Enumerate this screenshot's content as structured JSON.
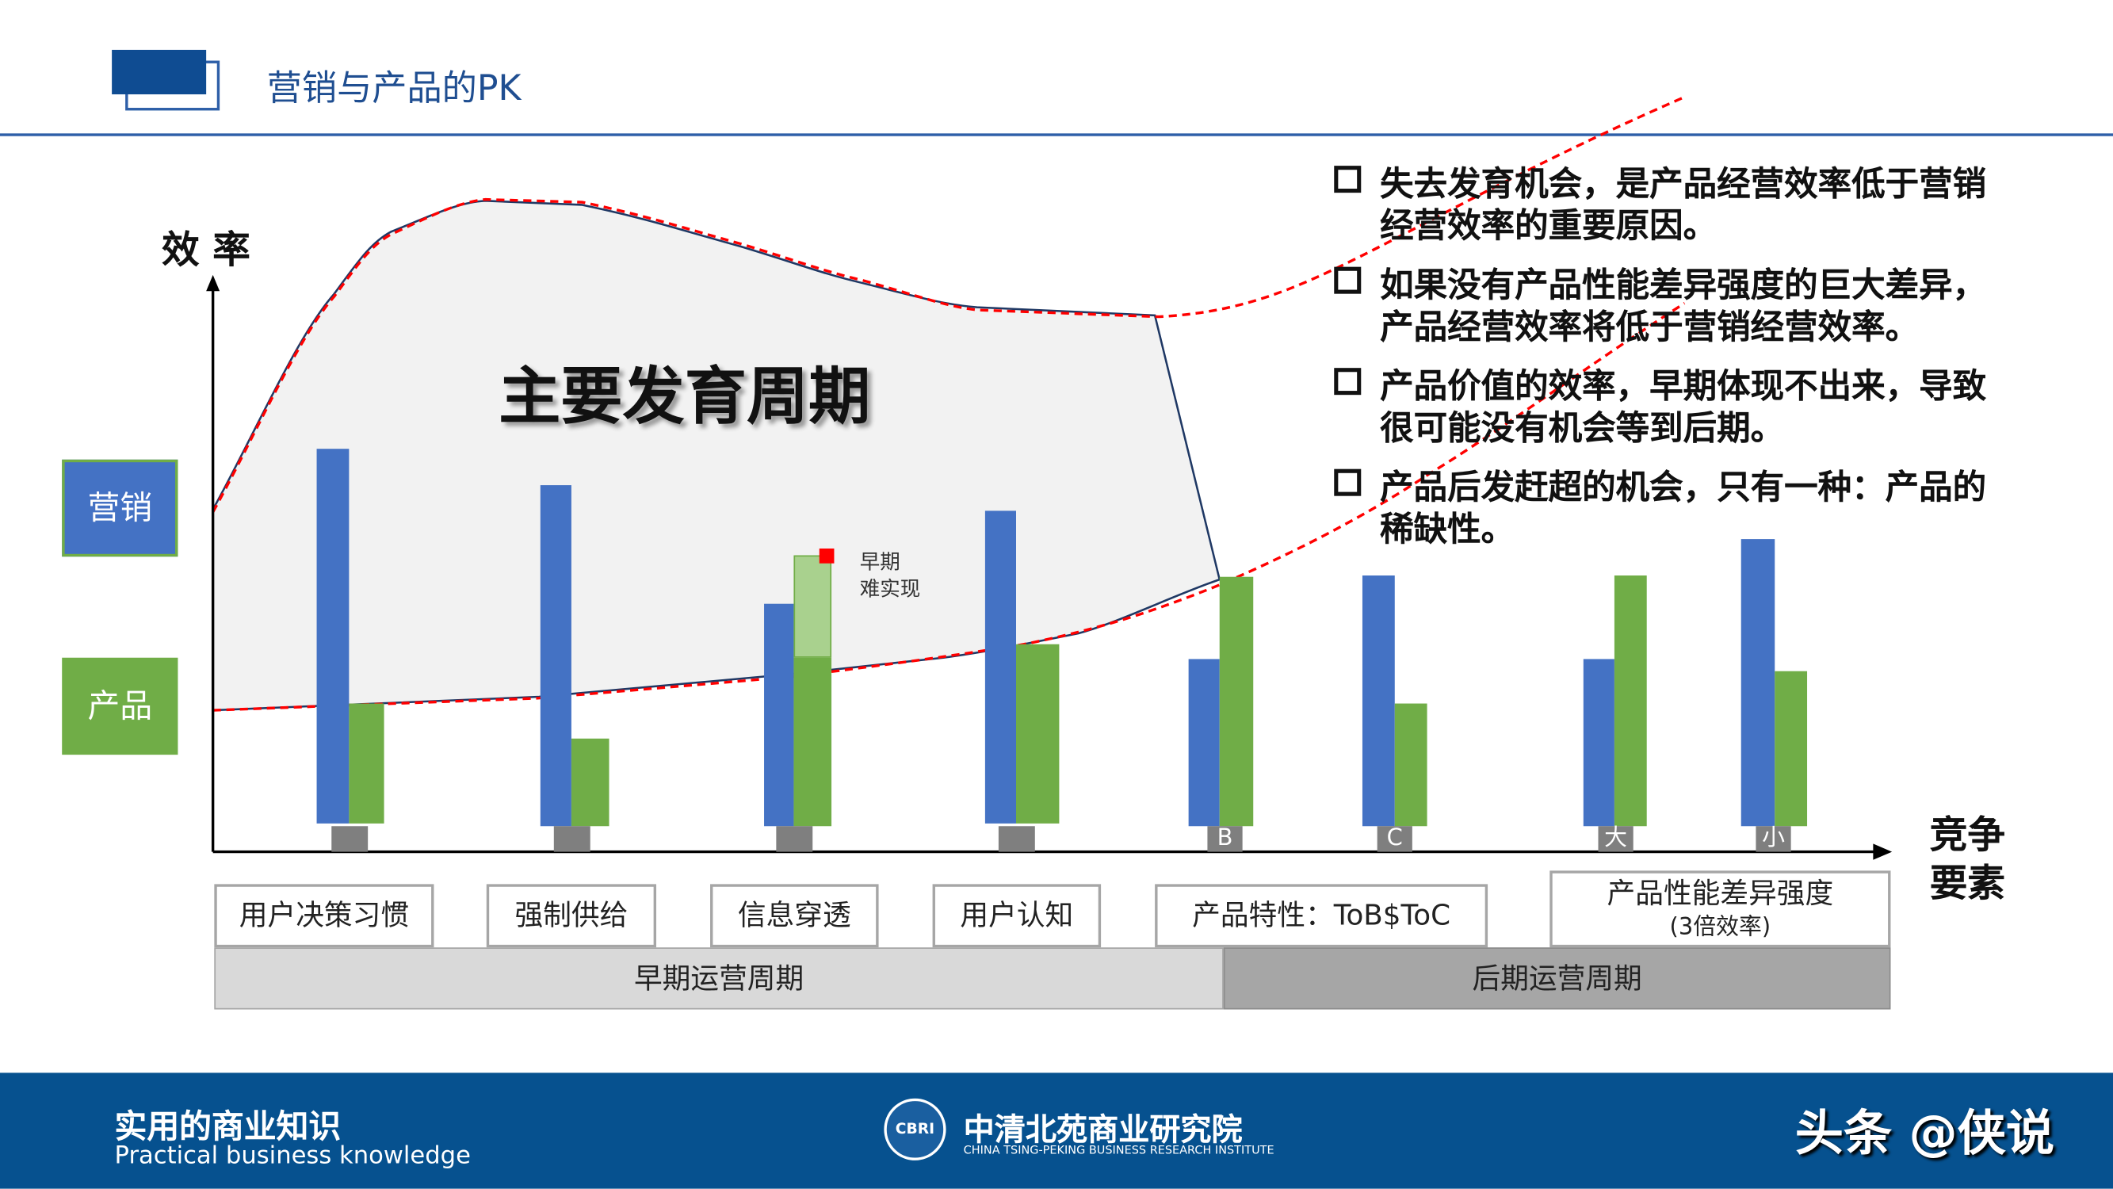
{
  "header": {
    "title": "营销与产品的PK"
  },
  "chart": {
    "y_axis_label": "效 率",
    "x_axis_label_line1": "竞争",
    "x_axis_label_line2": "要素",
    "legend": {
      "marketing": "营销",
      "product": "产品"
    },
    "main_label": "主要发育周期",
    "annotation_line1": "早期",
    "annotation_line2": "难实现",
    "bar_labels": [
      "",
      "",
      "",
      "",
      "B",
      "C",
      "大",
      "小"
    ],
    "categories": [
      "用户决策习惯",
      "强制供给",
      "信息穿透",
      "用户认知",
      "产品特性：ToB$ToC"
    ],
    "last_category_line1": "产品性能差异强度",
    "last_category_line2": "(3倍效率)",
    "periods": {
      "early": "早期运营周期",
      "late": "后期运营周期"
    },
    "colors": {
      "marketing": "#4472c4",
      "product": "#70ad47",
      "product_potential": "#a9d18e",
      "curve": "#ff0000",
      "outline": "#1f3864"
    }
  },
  "bullets": [
    {
      "line1": "失去发育机会，是产品经营效率低于营销",
      "line2": "经营效率的重要原因。"
    },
    {
      "line1": "如果没有产品性能差异强度的巨大差异，",
      "line2": "产品经营效率将低于营销经营效率。"
    },
    {
      "line1": "产品价值的效率，早期体现不出来，导致",
      "line2": "很可能没有机会等到后期。"
    },
    {
      "line1": "产品后发赶超的机会，只有一种：产品的",
      "line2": "稀缺性。"
    }
  ],
  "footer": {
    "slogan": "实用的商业知识",
    "slogan_en": "Practical business knowledge",
    "logo_text": "CBRI",
    "institute": "中清北苑商业研究院",
    "institute_en": "CHINA TSING-PEKING BUSINESS RESEARCH INSTITUTE",
    "watermark": "头条 @侠说"
  }
}
